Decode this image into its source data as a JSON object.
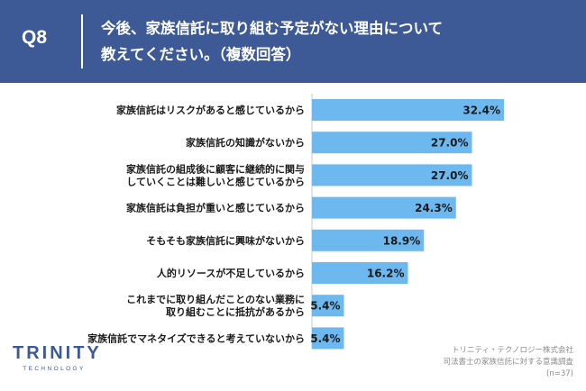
{
  "header": {
    "qnum": "Q8",
    "question_line1": "今後、家族信託に取り組む予定がない理由について",
    "question_line2": "教えてください。（複数回答）"
  },
  "colors": {
    "header_bg": "#3d5a96",
    "bar": "#6cb8ef"
  },
  "chart_data": {
    "type": "bar",
    "orientation": "horizontal",
    "categories": [
      [
        "家族信託はリスクがあると感じているから"
      ],
      [
        "家族信託の知識がないから"
      ],
      [
        "家族信託の組成後に顧客に継続的に関与",
        "していくことは難しいと感じているから"
      ],
      [
        "家族信託は負担が重いと感じているから"
      ],
      [
        "そもそも家族信託に興味がないから"
      ],
      [
        "人的リソースが不足しているから"
      ],
      [
        "これまでに取り組んだことのない業務に",
        "取り組むことに抵抗があるから"
      ],
      [
        "家族信託でマネタイズできると考えていないから"
      ]
    ],
    "values": [
      32.4,
      27.0,
      27.0,
      24.3,
      18.9,
      16.2,
      5.4,
      5.4
    ],
    "value_labels": [
      "32.4%",
      "27.0%",
      "27.0%",
      "24.3%",
      "18.9%",
      "16.2%",
      "5.4%",
      "5.4%"
    ],
    "unit": "%"
  },
  "logo": {
    "main": "TRINITY",
    "sub": "TECHNOLOGY"
  },
  "source": {
    "line1": "トリニティ・テクノロジー株式会社",
    "line2": "司法書士の家族信託に対する意識調査",
    "line3": "(n=37)"
  }
}
